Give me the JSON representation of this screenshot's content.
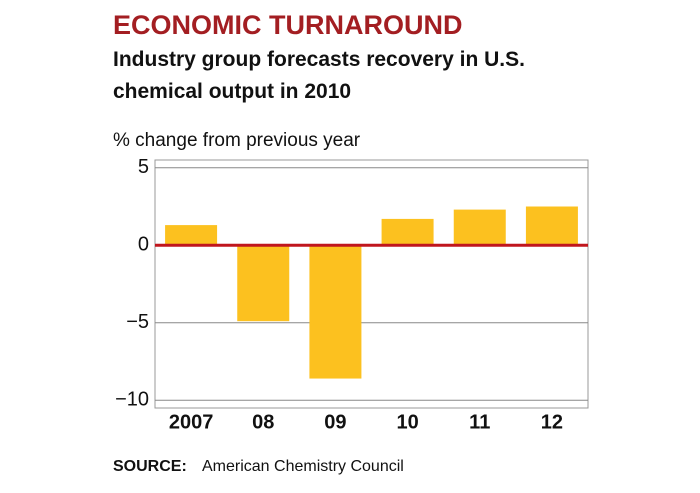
{
  "chart_data": {
    "type": "bar",
    "title": "ECONOMIC TURNAROUND",
    "subtitle": "Industry group forecasts recovery in U.S. chemical output in 2010",
    "y_label": "% change from previous year",
    "categories": [
      "2007",
      "08",
      "09",
      "10",
      "11",
      "12"
    ],
    "values": [
      1.3,
      -4.9,
      -8.6,
      1.7,
      2.3,
      2.5
    ],
    "color": "#fcc11f",
    "ylim": [
      -10.5,
      5.5
    ],
    "yticks": [
      {
        "value": -10,
        "label": "−10"
      },
      {
        "value": -5,
        "label": "−5"
      },
      0,
      5
    ],
    "grid": true,
    "zero_line_color": "#c0161d",
    "source_label": "SOURCE:",
    "source": "American Chemistry Council"
  }
}
